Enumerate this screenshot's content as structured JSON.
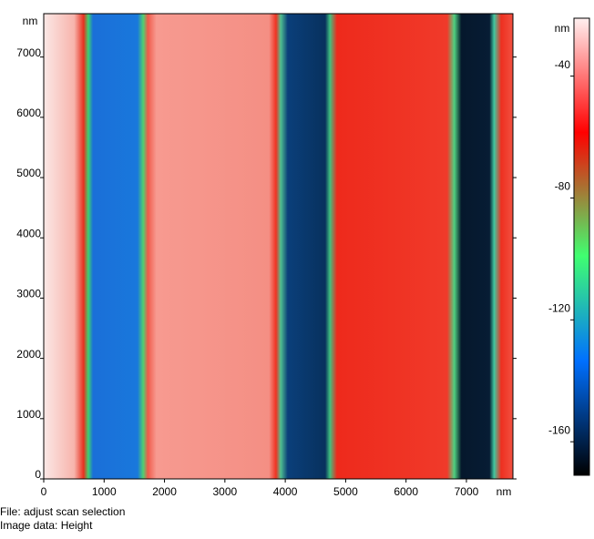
{
  "chart_data": {
    "type": "image",
    "x_label": "nm",
    "y_label": "nm",
    "xlim": [
      0,
      7770
    ],
    "ylim": [
      0,
      7720
    ],
    "xticks": [
      0,
      1000,
      2000,
      3000,
      4000,
      5000,
      6000,
      7000
    ],
    "yticks": [
      0,
      1000,
      2000,
      3000,
      4000,
      5000,
      6000,
      7000
    ],
    "colorbar": {
      "label": "nm",
      "clim": [
        -171,
        -21
      ],
      "ticks": [
        -40,
        -80,
        -120,
        -160
      ]
    },
    "footer": [
      "File: adjust scan selection",
      "Image data: Height"
    ]
  }
}
